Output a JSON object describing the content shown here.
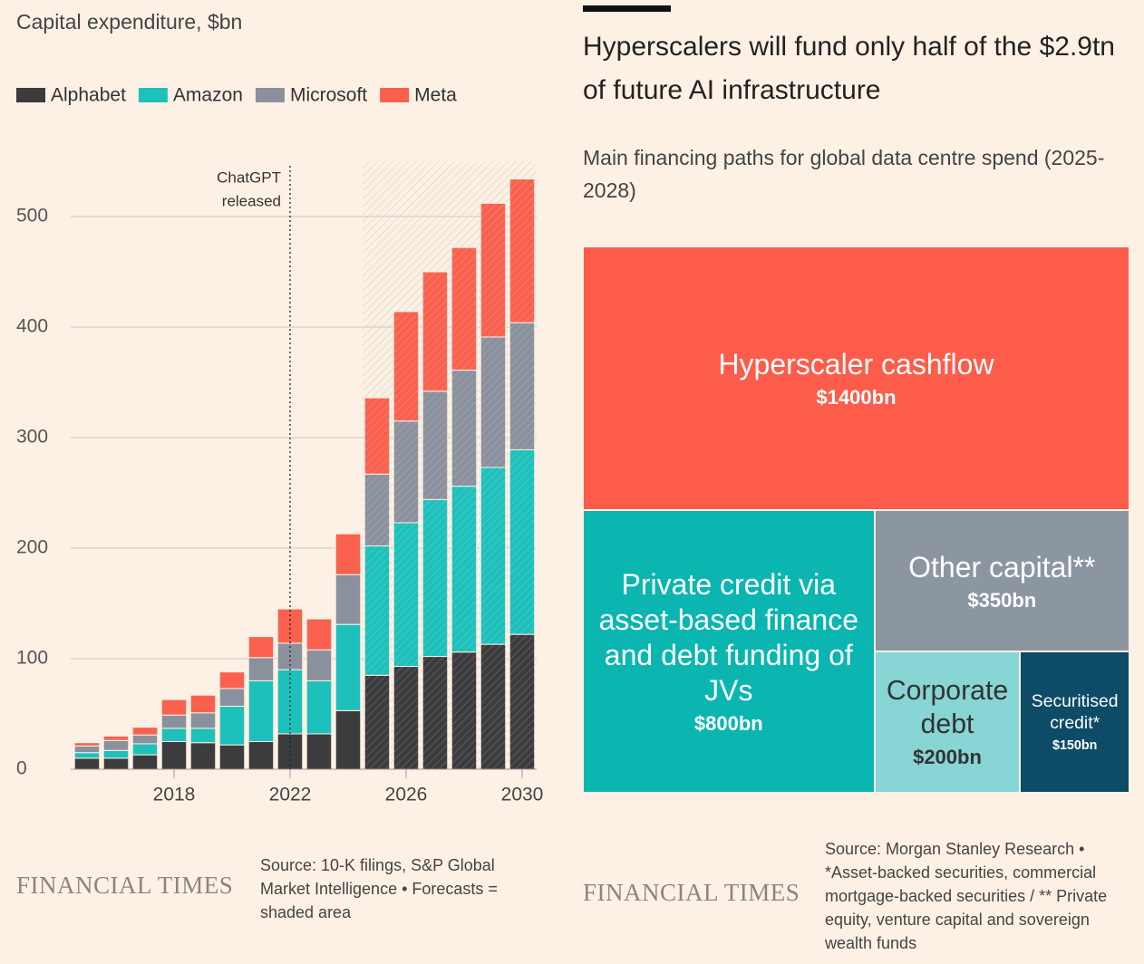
{
  "chart_data": [
    {
      "type": "bar",
      "stacked": true,
      "title": "Capital expenditure, $bn",
      "x": [
        2015,
        2016,
        2017,
        2018,
        2019,
        2020,
        2021,
        2022,
        2023,
        2024,
        2025,
        2026,
        2027,
        2028,
        2029,
        2030
      ],
      "xlim": [
        2014.5,
        2030.5
      ],
      "xticks": [
        2018,
        2022,
        2026,
        2030
      ],
      "ylim": [
        0,
        550
      ],
      "yticks": [
        0,
        100,
        200,
        300,
        400,
        500
      ],
      "grid": true,
      "series": [
        {
          "name": "Alphabet",
          "color": "#3c3b3d",
          "values": [
            10,
            10,
            13,
            25,
            24,
            22,
            25,
            32,
            32,
            53,
            85,
            93,
            102,
            106,
            113,
            122
          ]
        },
        {
          "name": "Amazon",
          "color": "#1ec0bb",
          "values": [
            5,
            7,
            10,
            12,
            13,
            35,
            55,
            58,
            48,
            78,
            117,
            130,
            142,
            150,
            160,
            167
          ]
        },
        {
          "name": "Microsoft",
          "color": "#8a919d",
          "values": [
            6,
            9,
            8,
            12,
            14,
            16,
            21,
            24,
            28,
            45,
            65,
            92,
            98,
            105,
            118,
            115
          ]
        },
        {
          "name": "Meta",
          "color": "#f9614e",
          "values": [
            3,
            4,
            7,
            14,
            16,
            15,
            19,
            31,
            28,
            37,
            69,
            99,
            108,
            111,
            121,
            130
          ]
        }
      ],
      "annotations": [
        {
          "x": 2022,
          "lines": [
            "ChatGPT",
            "released"
          ]
        }
      ],
      "shaded_from": 2025,
      "source": "Source: 10-K filings, S&P Global Market Intelligence • Forecasts = shaded area",
      "logo": "FINANCIAL TIMES"
    },
    {
      "type": "treemap",
      "title": "Hyperscalers will fund only half of the $2.9tn of future AI infrastructure",
      "subtitle": "Main financing paths for global data centre spend (2025-2028)",
      "items": [
        {
          "name": "Hyperscaler cashflow",
          "value": 1400,
          "value_label": "$1400bn",
          "color": "#fd5c4a"
        },
        {
          "name": "Private credit via asset-based finance and debt funding of JVs",
          "value": 800,
          "value_label": "$800bn",
          "color": "#0bb5b0"
        },
        {
          "name": "Other capital**",
          "value": 350,
          "value_label": "$350bn",
          "color": "#8c96a1"
        },
        {
          "name": "Corporate debt",
          "value": 200,
          "value_label": "$200bn",
          "color": "#87d5d4"
        },
        {
          "name": "Securitised credit*",
          "value": 150,
          "value_label": "$150bn",
          "color": "#0d4b66"
        }
      ],
      "source": "Source: Morgan Stanley Research • *Asset-backed securities, commercial mortgage-backed securities / ** Private equity, venture capital and sovereign wealth funds",
      "logo": "FINANCIAL TIMES"
    }
  ]
}
